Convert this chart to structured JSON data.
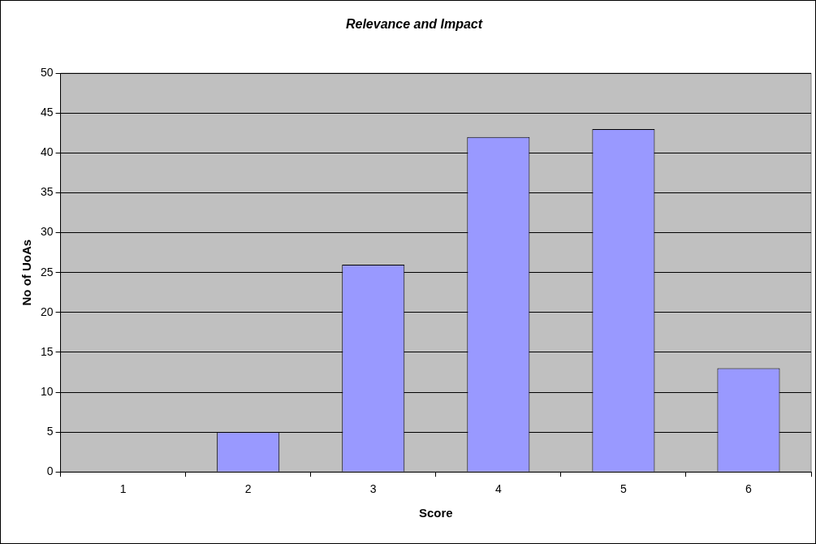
{
  "chart_data": {
    "type": "bar",
    "title": "Relevance and Impact",
    "xlabel": "Score",
    "ylabel": "No of UoAs",
    "categories": [
      "1",
      "2",
      "3",
      "4",
      "5",
      "6"
    ],
    "values": [
      0,
      5,
      26,
      42,
      43,
      13
    ],
    "color": "#9999ff",
    "ylim": [
      0,
      50
    ],
    "yticks": [
      0,
      5,
      10,
      15,
      20,
      25,
      30,
      35,
      40,
      45,
      50
    ],
    "grid": "y"
  }
}
